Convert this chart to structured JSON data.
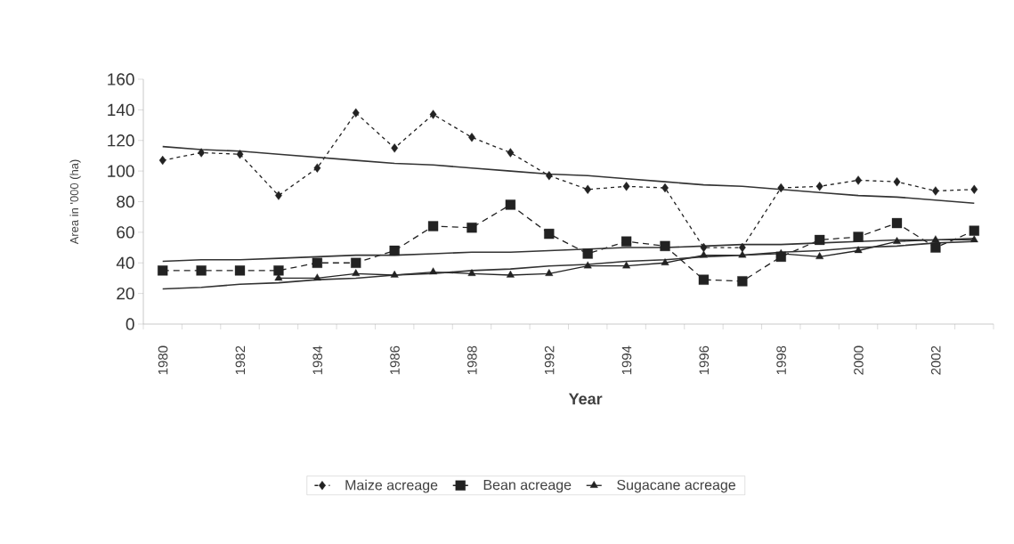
{
  "chart_data": {
    "type": "line",
    "xlabel": "Year",
    "ylabel": "Area in '000 (ha)",
    "categories": [
      "1980",
      null,
      "1982",
      null,
      "1984",
      null,
      "1986",
      null,
      "1988",
      null,
      "1992",
      null,
      "1994",
      null,
      "1996",
      null,
      "1998",
      null,
      "2000",
      null,
      "2002",
      null
    ],
    "series": [
      {
        "name": "Maize acreage",
        "color": "#222222",
        "marker": "diamond",
        "line_style": "dotted",
        "values": [
          107,
          112,
          111,
          84,
          102,
          138,
          115,
          137,
          122,
          112,
          97,
          88,
          90,
          89,
          50,
          50,
          89,
          90,
          94,
          93,
          87,
          88
        ]
      },
      {
        "name": "Bean acreage",
        "color": "#222222",
        "marker": "square",
        "line_style": "dashed",
        "values": [
          35,
          35,
          35,
          35,
          40,
          40,
          48,
          64,
          63,
          78,
          59,
          46,
          54,
          51,
          29,
          28,
          44,
          55,
          57,
          66,
          50,
          61
        ]
      },
      {
        "name": "Sugacane acreage",
        "color": "#222222",
        "marker": "triangle",
        "line_style": "solid",
        "values": [
          null,
          null,
          null,
          30,
          30,
          33,
          32,
          34,
          33,
          32,
          33,
          38,
          38,
          40,
          45,
          45,
          46,
          44,
          48,
          54,
          55,
          55
        ]
      },
      {
        "color": "#333333",
        "marker": "none",
        "line_style": "solid",
        "values": [
          116,
          114,
          113,
          111,
          109,
          107,
          105,
          104,
          102,
          100,
          98,
          97,
          95,
          93,
          91,
          90,
          88,
          86,
          84,
          83,
          81,
          79
        ]
      },
      {
        "color": "#333333",
        "marker": "none",
        "line_style": "solid",
        "values": [
          41,
          42,
          42,
          43,
          44,
          45,
          45,
          46,
          47,
          47,
          48,
          49,
          50,
          50,
          51,
          52,
          52,
          53,
          54,
          55,
          55,
          56
        ]
      },
      {
        "color": "#333333",
        "marker": "none",
        "line_style": "solid",
        "values": [
          23,
          24,
          26,
          27,
          29,
          30,
          32,
          33,
          35,
          36,
          38,
          39,
          41,
          42,
          44,
          45,
          47,
          48,
          50,
          51,
          53,
          54
        ]
      }
    ],
    "ylim": [
      0,
      160
    ],
    "yticks": [
      0,
      20,
      40,
      60,
      80,
      100,
      120,
      140,
      160
    ],
    "grid": false,
    "legend": "bottom"
  }
}
